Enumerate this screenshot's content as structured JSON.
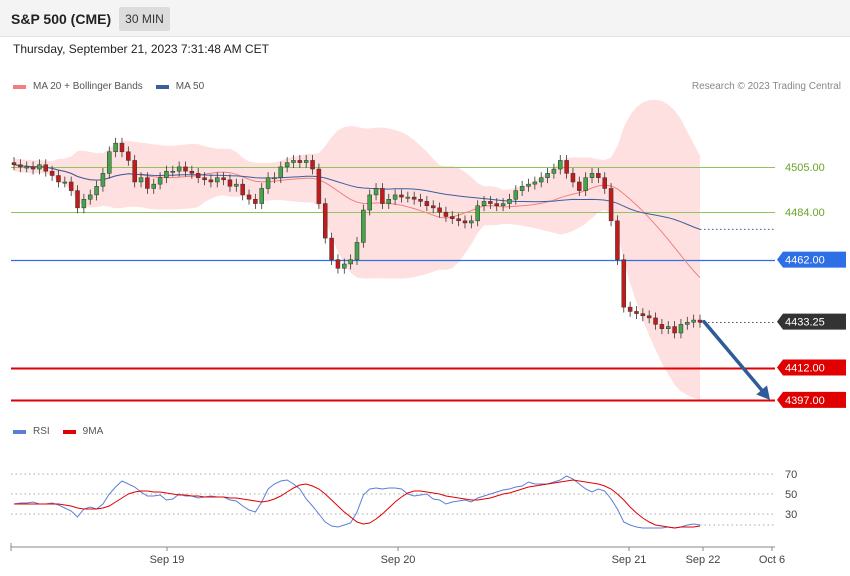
{
  "header": {
    "title": "S&P 500 (CME)",
    "timeframe": "30 MIN"
  },
  "timestamp": "Thursday, September 21, 2023 7:31:48 AM CET",
  "legend": {
    "items": [
      {
        "label": "MA 20 + Bollinger Bands",
        "color": "#f08080"
      },
      {
        "label": "MA 50",
        "color": "#3a5fa0"
      }
    ]
  },
  "copyright": "Research © 2023 Trading Central",
  "rsi_legend": {
    "items": [
      {
        "label": "RSI",
        "color": "#5b7fd6"
      },
      {
        "label": "9MA",
        "color": "#e00000"
      }
    ]
  },
  "chart_data": [
    {
      "type": "candlestick",
      "ylim": [
        4390,
        4536
      ],
      "x_labels": [
        "Sep 19",
        "Sep 20",
        "Sep 21",
        "Sep 22",
        "Oct 6"
      ],
      "levels": [
        {
          "value": 4505.0,
          "label": "4505.00",
          "style": "resistance-minor",
          "color": "#8fc45a"
        },
        {
          "value": 4484.0,
          "label": "4484.00",
          "style": "resistance-minor",
          "color": "#8fc45a"
        },
        {
          "value": 4462.0,
          "label": "4462.00",
          "style": "pivot",
          "color": "#2f6fe6"
        },
        {
          "value": 4433.25,
          "label": "4433.25",
          "style": "last-price",
          "color": "#333333"
        },
        {
          "value": 4412.0,
          "label": "4412.00",
          "style": "support",
          "color": "#e00000"
        },
        {
          "value": 4397.0,
          "label": "4397.00",
          "style": "support",
          "color": "#e00000"
        }
      ],
      "projection": {
        "from": 4433.25,
        "to": 4397.0
      },
      "series": [
        {
          "name": "MA 20 + Bollinger Bands",
          "color": "#f08080"
        },
        {
          "name": "MA 50",
          "color": "#3a5fa0"
        }
      ],
      "closes": [
        4506,
        4505,
        4505,
        4504,
        4506,
        4503,
        4501,
        4498,
        4498,
        4494,
        4486,
        4490,
        4492,
        4496,
        4502,
        4512,
        4516,
        4512,
        4508,
        4498,
        4500,
        4495,
        4497,
        4500,
        4503,
        4503,
        4505,
        4503,
        4502,
        4500,
        4499,
        4498,
        4500,
        4499,
        4496,
        4497,
        4492,
        4490,
        4488,
        4495,
        4500,
        4500,
        4505,
        4507,
        4508,
        4507,
        4508,
        4504,
        4488,
        4472,
        4462,
        4458,
        4460,
        4462,
        4470,
        4485,
        4492,
        4495,
        4488,
        4490,
        4492,
        4491,
        4491,
        4490,
        4489,
        4487,
        4486,
        4484,
        4482,
        4481,
        4480,
        4479,
        4480,
        4487,
        4489,
        4488,
        4487,
        4488,
        4490,
        4494,
        4496,
        4497,
        4498,
        4500,
        4502,
        4504,
        4508,
        4502,
        4498,
        4494,
        4500,
        4502,
        4500,
        4495,
        4480,
        4462,
        4440,
        4438,
        4437,
        4436,
        4435,
        4432,
        4430,
        4431,
        4428,
        4432,
        4433,
        4434,
        4433
      ]
    },
    {
      "type": "line",
      "ylim": [
        0,
        100
      ],
      "yticks": [
        70,
        50,
        30
      ],
      "series": [
        {
          "name": "RSI",
          "color": "#5b7fd6",
          "values": [
            40,
            41,
            41,
            42,
            40,
            40,
            41,
            39,
            36,
            33,
            27,
            35,
            37,
            35,
            40,
            50,
            57,
            63,
            60,
            57,
            52,
            48,
            48,
            49,
            44,
            45,
            50,
            48,
            48,
            46,
            47,
            48,
            47,
            47,
            44,
            43,
            38,
            34,
            32,
            42,
            55,
            60,
            63,
            64,
            60,
            55,
            45,
            38,
            30,
            22,
            18,
            17,
            19,
            21,
            32,
            49,
            55,
            56,
            55,
            56,
            56,
            55,
            50,
            48,
            49,
            50,
            45,
            44,
            40,
            42,
            43,
            44,
            42,
            46,
            48,
            50,
            52,
            54,
            55,
            57,
            58,
            62,
            60,
            60,
            60,
            62,
            64,
            68,
            65,
            60,
            55,
            52,
            55,
            53,
            45,
            35,
            22,
            19,
            17,
            16,
            16,
            16,
            16,
            17,
            16,
            17,
            19,
            20,
            19
          ]
        },
        {
          "name": "9MA",
          "color": "#e00000",
          "values": [
            40,
            40,
            40,
            40,
            40,
            40,
            40,
            40,
            39,
            38,
            36,
            35,
            35,
            35,
            36,
            38,
            42,
            46,
            50,
            52,
            53,
            53,
            52,
            52,
            51,
            50,
            49,
            49,
            48,
            48,
            47,
            47,
            47,
            47,
            46,
            46,
            45,
            44,
            43,
            42,
            43,
            45,
            48,
            52,
            56,
            59,
            60,
            58,
            55,
            50,
            44,
            38,
            32,
            27,
            22,
            20,
            21,
            25,
            30,
            36,
            42,
            47,
            51,
            53,
            53,
            52,
            51,
            50,
            48,
            47,
            46,
            45,
            44,
            44,
            45,
            46,
            48,
            50,
            51,
            53,
            55,
            57,
            58,
            59,
            60,
            61,
            62,
            63,
            64,
            63,
            62,
            61,
            60,
            58,
            55,
            50,
            44,
            37,
            31,
            26,
            22,
            19,
            18,
            17,
            16,
            17,
            17,
            17,
            18
          ]
        }
      ]
    }
  ]
}
